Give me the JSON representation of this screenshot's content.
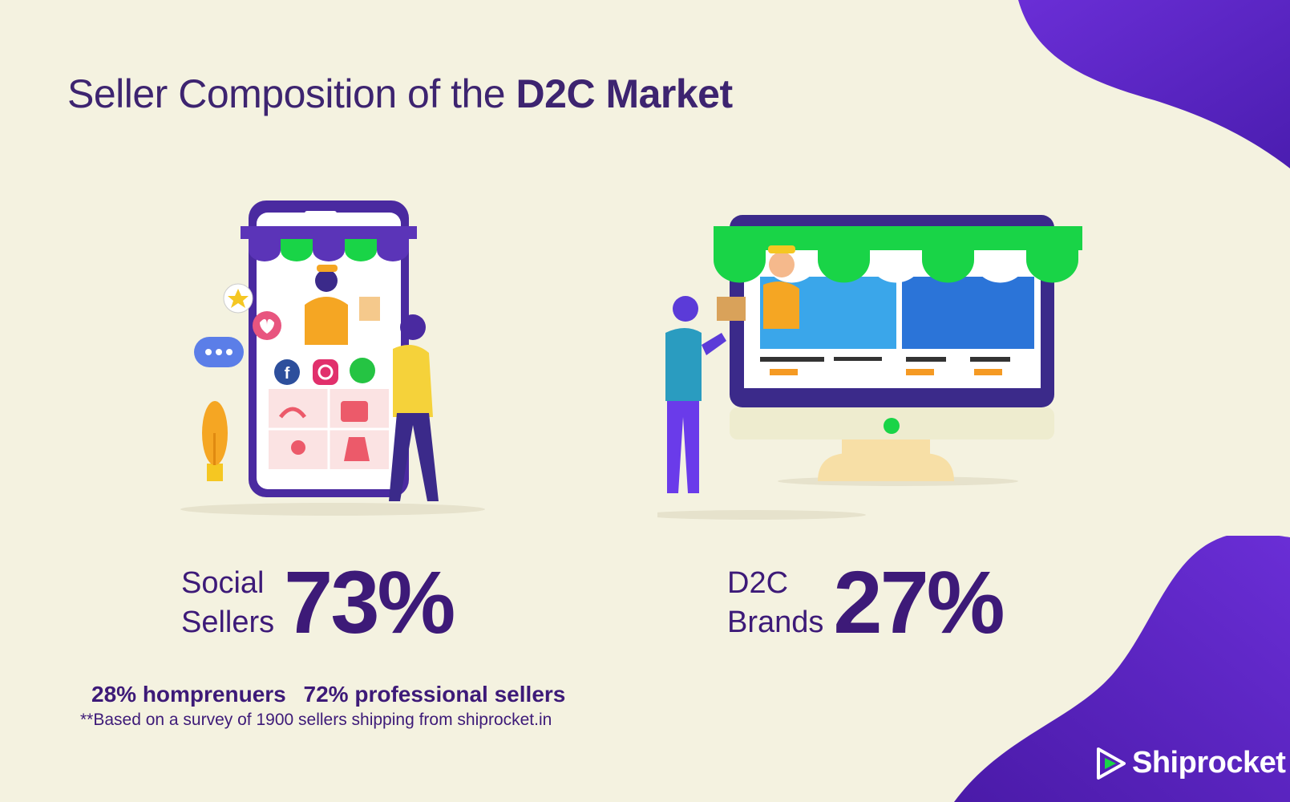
{
  "title": {
    "light": "Seller Composition of the",
    "bold": "D2C Market"
  },
  "colors": {
    "background": "#f4f2e0",
    "primary": "#3d1a78",
    "accent_purple": "#5b2bd1",
    "awning_green": "#19d447"
  },
  "social_sellers": {
    "label_line1": "Social",
    "label_line2": "Sellers",
    "percent": "73%",
    "value": 73
  },
  "d2c_brands": {
    "label_line1": "D2C",
    "label_line2": "Brands",
    "percent": "27%",
    "value": 27
  },
  "breakdown": {
    "homepreneurs": "28% homprenuers",
    "professional": "72% professional sellers"
  },
  "footnote": "**Based on a survey of 1900 sellers shipping from shiprocket.in",
  "brand": {
    "name": "Shiprocket",
    "icon": "shiprocket-logo-icon"
  },
  "illustrations": {
    "left": {
      "icons": [
        "facebook-icon",
        "instagram-icon",
        "whatsapp-icon",
        "heart-icon",
        "star-icon",
        "chat-icon"
      ]
    },
    "right": {
      "icons": [
        "monitor-icon",
        "package-icon"
      ]
    }
  }
}
